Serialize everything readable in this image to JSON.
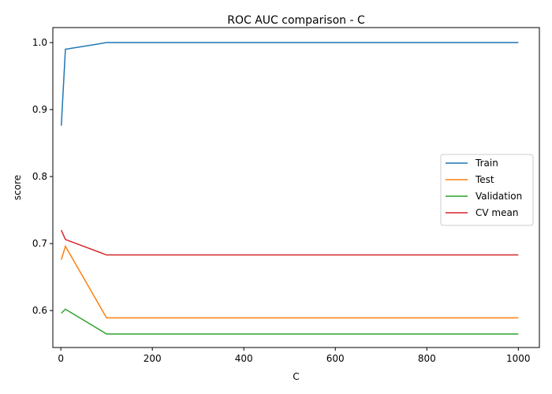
{
  "chart_data": {
    "type": "line",
    "title": "ROC AUC comparison - C",
    "xlabel": "C",
    "ylabel": "score",
    "x": [
      1,
      10,
      100,
      1000
    ],
    "xlim": [
      -17.5,
      1046
    ],
    "ylim": [
      0.5448,
      1.0224
    ],
    "xticks": [
      0,
      200,
      400,
      600,
      800,
      1000
    ],
    "yticks": [
      0.6,
      0.7,
      0.8,
      0.9,
      1.0
    ],
    "xtick_labels": [
      "0",
      "200",
      "400",
      "600",
      "800",
      "1000"
    ],
    "ytick_labels": [
      "0.6",
      "0.7",
      "0.8",
      "0.9",
      "1.0"
    ],
    "grid": false,
    "legend_position": "center-right",
    "series": [
      {
        "name": "Train",
        "color": "#1f77b4",
        "values": [
          0.876,
          0.99,
          1.0,
          1.0
        ]
      },
      {
        "name": "Test",
        "color": "#ff7f0e",
        "values": [
          0.676,
          0.696,
          0.589,
          0.589
        ]
      },
      {
        "name": "Validation",
        "color": "#2ca02c",
        "values": [
          0.596,
          0.602,
          0.565,
          0.565
        ]
      },
      {
        "name": "CV mean",
        "color": "#d62728",
        "values": [
          0.72,
          0.706,
          0.683,
          0.683
        ]
      }
    ]
  }
}
